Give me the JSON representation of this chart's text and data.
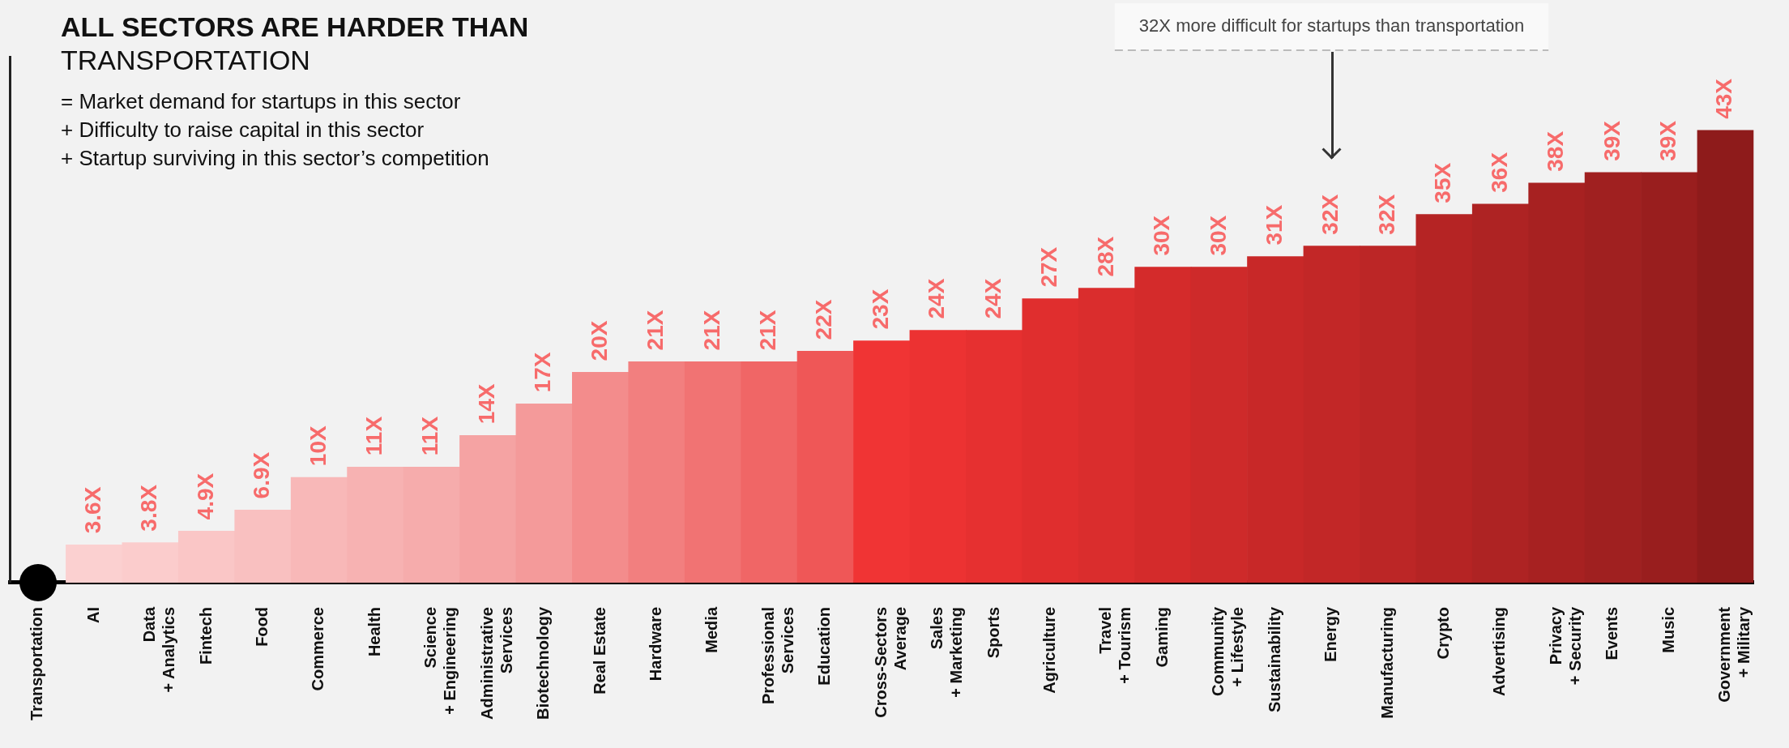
{
  "chart_data": {
    "type": "bar",
    "title": "ALL SECTORS ARE HARDER THAN",
    "subtitle": "TRANSPORTATION",
    "categories": [
      "Transportation",
      "AI",
      "Data\n+ Analytics",
      "Fintech",
      "Food",
      "Commerce",
      "Health",
      "Science\n+ Engineering",
      "Administrative\nServices",
      "Biotechnology",
      "Real Estate",
      "Hardware",
      "Media",
      "Professional\nServices",
      "Education",
      "Cross-Sectors\nAverage",
      "Sales\n+ Marketing",
      "Sports",
      "Agriculture",
      "Travel\n+ Tourism",
      "Gaming",
      "Community\n+ Lifestyle",
      "Sustainability",
      "Energy",
      "Manufacturing",
      "Crypto",
      "Advertising",
      "Privacy\n+ Security",
      "Events",
      "Music",
      "Government\n+ Military"
    ],
    "values": [
      null,
      3.6,
      3.8,
      4.9,
      6.9,
      10,
      11,
      11,
      14,
      17,
      20,
      21,
      21,
      21,
      22,
      23,
      24,
      24,
      27,
      28,
      30,
      30,
      31,
      32,
      32,
      35,
      36,
      38,
      39,
      39,
      43
    ],
    "value_labels": [
      null,
      "3.6X",
      "3.8X",
      "4.9X",
      "6.9X",
      "10X",
      "11X",
      "11X",
      "14X",
      "17X",
      "20X",
      "21X",
      "21X",
      "21X",
      "22X",
      "23X",
      "24X",
      "24X",
      "27X",
      "28X",
      "30X",
      "30X",
      "31X",
      "32X",
      "32X",
      "35X",
      "36X",
      "38X",
      "39X",
      "39X",
      "43X"
    ],
    "colors": [
      "#f2f2f2",
      "#fbd0d0",
      "#fbcccc",
      "#fac6c6",
      "#f9c0c0",
      "#f8b8b8",
      "#f7b2b2",
      "#f6acac",
      "#f5a3a3",
      "#f49a9a",
      "#f38c8c",
      "#f27f7f",
      "#f17373",
      "#f06666",
      "#ef5757",
      "#f03434",
      "#ec3232",
      "#e63030",
      "#e02e2e",
      "#da2d2d",
      "#d42b2b",
      "#ce2a2a",
      "#c82828",
      "#c22727",
      "#bc2626",
      "#b52424",
      "#ae2323",
      "#a72121",
      "#a02020",
      "#991e1e",
      "#8e1b1b"
    ],
    "annotations": [
      "= Market demand for startups in this sector",
      "+ Difficulty to raise capital in this sector",
      "+ Startup surviving in this sector’s competition",
      "32X more difficult for startups than transportation"
    ],
    "grid": false,
    "legend": false,
    "tick_labels": "x",
    "relative": false
  }
}
